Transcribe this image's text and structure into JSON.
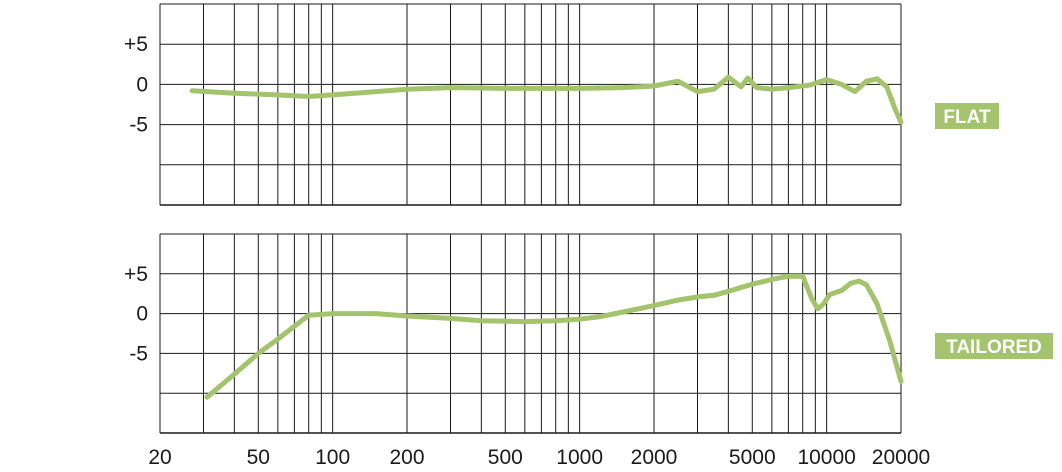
{
  "chart_data": [
    {
      "type": "line",
      "title": "",
      "xlabel": "",
      "ylabel": "",
      "xscale": "log",
      "xlim": [
        20,
        20000
      ],
      "ylim": [
        -15,
        10
      ],
      "grid": true,
      "badge": "FLAT",
      "y_ticks": [
        "+5",
        "0",
        "-5"
      ],
      "y_tick_values": [
        5,
        0,
        -5
      ],
      "series": [
        {
          "color": "#a3c36c",
          "points": [
            [
              27,
              -0.8
            ],
            [
              40,
              -1.1
            ],
            [
              60,
              -1.3
            ],
            [
              80,
              -1.5
            ],
            [
              100,
              -1.3
            ],
            [
              150,
              -0.9
            ],
            [
              200,
              -0.6
            ],
            [
              300,
              -0.4
            ],
            [
              500,
              -0.5
            ],
            [
              800,
              -0.5
            ],
            [
              1000,
              -0.5
            ],
            [
              1500,
              -0.4
            ],
            [
              2000,
              -0.2
            ],
            [
              2500,
              0.4
            ],
            [
              3000,
              -0.9
            ],
            [
              3500,
              -0.6
            ],
            [
              4000,
              0.9
            ],
            [
              4500,
              -0.3
            ],
            [
              4800,
              0.8
            ],
            [
              5200,
              -0.4
            ],
            [
              6000,
              -0.6
            ],
            [
              7000,
              -0.4
            ],
            [
              8500,
              -0.1
            ],
            [
              10000,
              0.6
            ],
            [
              11500,
              0
            ],
            [
              13000,
              -0.9
            ],
            [
              14500,
              0.4
            ],
            [
              16000,
              0.7
            ],
            [
              17500,
              -0.3
            ],
            [
              19000,
              -3.2
            ],
            [
              20000,
              -4.7
            ]
          ]
        }
      ]
    },
    {
      "type": "line",
      "title": "",
      "xlabel": "",
      "ylabel": "",
      "xscale": "log",
      "xlim": [
        20,
        20000
      ],
      "ylim": [
        -15,
        10
      ],
      "grid": true,
      "badge": "TAILORED",
      "y_ticks": [
        "+5",
        "0",
        "-5"
      ],
      "y_tick_values": [
        5,
        0,
        -5
      ],
      "series": [
        {
          "color": "#a3c36c",
          "points": [
            [
              31,
              -10.5
            ],
            [
              40,
              -7.6
            ],
            [
              50,
              -5.0
            ],
            [
              60,
              -3.2
            ],
            [
              80,
              -0.2
            ],
            [
              100,
              0
            ],
            [
              150,
              0
            ],
            [
              200,
              -0.3
            ],
            [
              300,
              -0.6
            ],
            [
              400,
              -0.9
            ],
            [
              600,
              -1.0
            ],
            [
              800,
              -0.9
            ],
            [
              1000,
              -0.7
            ],
            [
              1200,
              -0.4
            ],
            [
              1500,
              0.2
            ],
            [
              2000,
              1.0
            ],
            [
              2500,
              1.7
            ],
            [
              3000,
              2.1
            ],
            [
              3500,
              2.3
            ],
            [
              4000,
              2.8
            ],
            [
              5000,
              3.7
            ],
            [
              6000,
              4.3
            ],
            [
              7000,
              4.7
            ],
            [
              8000,
              4.7
            ],
            [
              8700,
              1.9
            ],
            [
              9200,
              0.6
            ],
            [
              9700,
              1.2
            ],
            [
              10300,
              2.4
            ],
            [
              11500,
              2.9
            ],
            [
              12500,
              3.8
            ],
            [
              13500,
              4.1
            ],
            [
              14500,
              3.6
            ],
            [
              16000,
              1.2
            ],
            [
              18000,
              -3.4
            ],
            [
              20000,
              -8.5
            ]
          ]
        }
      ]
    }
  ],
  "x_ticks": [
    "20",
    "50",
    "100",
    "200",
    "500",
    "1000",
    "2000",
    "5000",
    "10000",
    "20000"
  ],
  "x_tick_values": [
    20,
    50,
    100,
    200,
    500,
    1000,
    2000,
    5000,
    10000,
    20000
  ],
  "colors": {
    "curve": "#a3c36c",
    "badge": "#a3c36c",
    "grid": "#1a1a1a"
  }
}
